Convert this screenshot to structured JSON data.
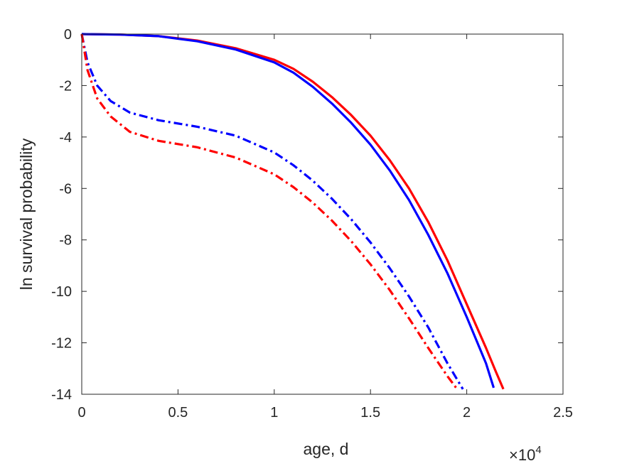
{
  "chart_data": {
    "type": "line",
    "xlabel": "age, d",
    "ylabel": "ln survival probability",
    "x_exponent": {
      "base": "10",
      "power": "4",
      "times": "×"
    },
    "xlim": [
      0,
      25000
    ],
    "ylim": [
      -14,
      0
    ],
    "xticks": [
      0,
      5000,
      10000,
      15000,
      20000,
      25000
    ],
    "xtick_labels": [
      "0",
      "0.5",
      "1",
      "1.5",
      "2",
      "2.5"
    ],
    "yticks": [
      0,
      -2,
      -4,
      -6,
      -8,
      -10,
      -12,
      -14
    ],
    "ytick_labels": [
      "0",
      "-2",
      "-4",
      "-6",
      "-8",
      "-10",
      "-12",
      "-14"
    ],
    "grid": false,
    "series": [
      {
        "color": "#ff0000",
        "style": "solid",
        "points": [
          [
            0,
            0
          ],
          [
            2000,
            -0.02
          ],
          [
            4000,
            -0.08
          ],
          [
            6000,
            -0.25
          ],
          [
            8000,
            -0.55
          ],
          [
            10000,
            -1.0
          ],
          [
            11000,
            -1.35
          ],
          [
            12000,
            -1.85
          ],
          [
            13000,
            -2.45
          ],
          [
            14000,
            -3.15
          ],
          [
            15000,
            -3.95
          ],
          [
            16000,
            -4.9
          ],
          [
            17000,
            -6.0
          ],
          [
            18000,
            -7.3
          ],
          [
            19000,
            -8.8
          ],
          [
            20000,
            -10.5
          ],
          [
            21000,
            -12.2
          ],
          [
            21500,
            -13.1
          ],
          [
            21900,
            -13.8
          ]
        ]
      },
      {
        "color": "#0000ff",
        "style": "solid",
        "points": [
          [
            0,
            0
          ],
          [
            2000,
            -0.02
          ],
          [
            4000,
            -0.08
          ],
          [
            6000,
            -0.28
          ],
          [
            8000,
            -0.6
          ],
          [
            10000,
            -1.1
          ],
          [
            11000,
            -1.5
          ],
          [
            12000,
            -2.05
          ],
          [
            13000,
            -2.7
          ],
          [
            14000,
            -3.45
          ],
          [
            15000,
            -4.3
          ],
          [
            16000,
            -5.3
          ],
          [
            17000,
            -6.45
          ],
          [
            18000,
            -7.8
          ],
          [
            19000,
            -9.3
          ],
          [
            20000,
            -11.0
          ],
          [
            21000,
            -12.8
          ],
          [
            21400,
            -13.75
          ]
        ]
      },
      {
        "color": "#0000ff",
        "style": "dashdot",
        "points": [
          [
            0,
            0
          ],
          [
            300,
            -1.1
          ],
          [
            800,
            -2.0
          ],
          [
            1500,
            -2.6
          ],
          [
            2500,
            -3.05
          ],
          [
            4000,
            -3.35
          ],
          [
            6000,
            -3.6
          ],
          [
            8000,
            -3.95
          ],
          [
            10000,
            -4.6
          ],
          [
            11000,
            -5.1
          ],
          [
            12000,
            -5.7
          ],
          [
            13000,
            -6.4
          ],
          [
            14000,
            -7.2
          ],
          [
            15000,
            -8.1
          ],
          [
            16000,
            -9.1
          ],
          [
            17000,
            -10.2
          ],
          [
            18000,
            -11.4
          ],
          [
            19000,
            -12.8
          ],
          [
            19800,
            -13.8
          ]
        ]
      },
      {
        "color": "#ff0000",
        "style": "dashdot",
        "points": [
          [
            0,
            0
          ],
          [
            300,
            -1.4
          ],
          [
            800,
            -2.5
          ],
          [
            1500,
            -3.2
          ],
          [
            2500,
            -3.8
          ],
          [
            4000,
            -4.15
          ],
          [
            6000,
            -4.4
          ],
          [
            8000,
            -4.8
          ],
          [
            10000,
            -5.45
          ],
          [
            11000,
            -5.95
          ],
          [
            12000,
            -6.55
          ],
          [
            13000,
            -7.25
          ],
          [
            14000,
            -8.05
          ],
          [
            15000,
            -8.95
          ],
          [
            16000,
            -9.95
          ],
          [
            17000,
            -11.05
          ],
          [
            18000,
            -12.2
          ],
          [
            19000,
            -13.3
          ],
          [
            19500,
            -13.8
          ]
        ]
      }
    ]
  }
}
